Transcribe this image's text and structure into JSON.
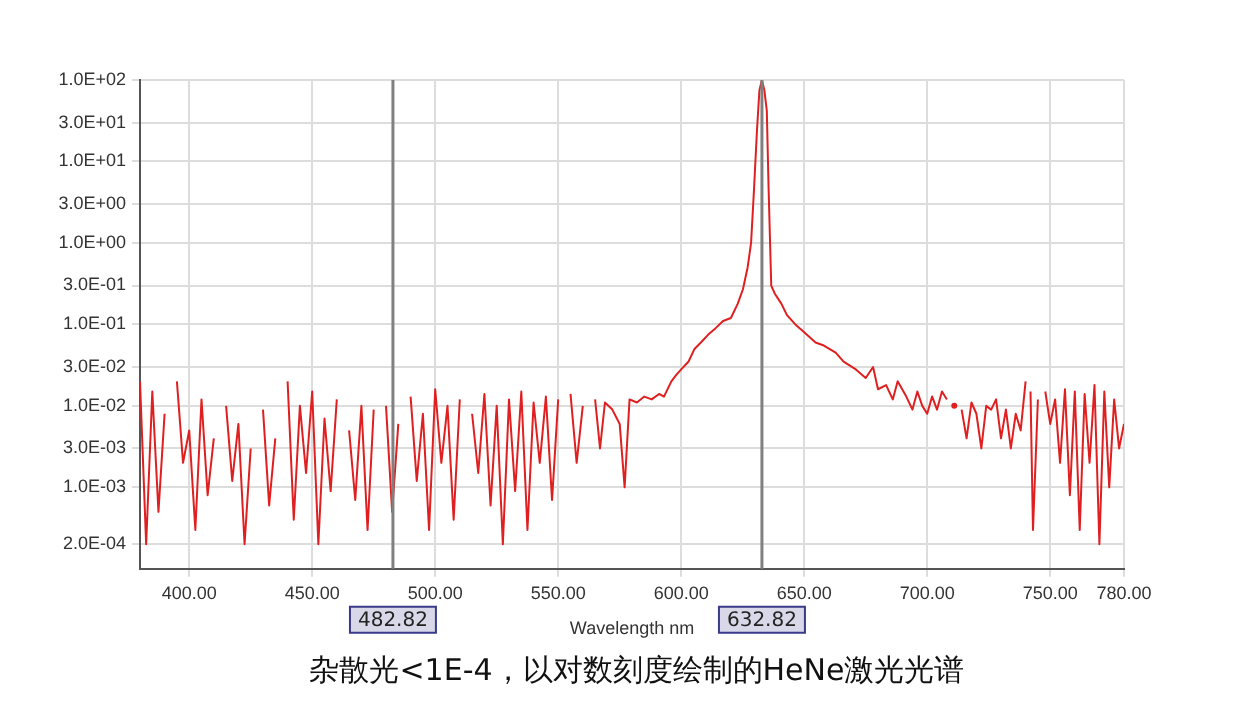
{
  "chart_data": {
    "type": "line",
    "title": "杂散光<1E-4，以对数刻度绘制的HeNe激光光谱",
    "xlabel": "Wavelength nm",
    "log": "y",
    "grid": true,
    "legend": false,
    "xlim": [
      380,
      780
    ],
    "xticks": [
      {
        "value": 400,
        "label": "400.00"
      },
      {
        "value": 450,
        "label": "450.00"
      },
      {
        "value": 500,
        "label": "500.00"
      },
      {
        "value": 550,
        "label": "550.00"
      },
      {
        "value": 600,
        "label": "600.00"
      },
      {
        "value": 650,
        "label": "650.00"
      },
      {
        "value": 700,
        "label": "700.00"
      },
      {
        "value": 750,
        "label": "750.00"
      },
      {
        "value": 780,
        "label": "780.00"
      }
    ],
    "ylim": [
      0.0001,
      100
    ],
    "yticks": [
      {
        "value": 100,
        "label": "1.0E+02"
      },
      {
        "value": 30,
        "label": "3.0E+01"
      },
      {
        "value": 10,
        "label": "1.0E+01"
      },
      {
        "value": 3,
        "label": "3.0E+00"
      },
      {
        "value": 1,
        "label": "1.0E+00"
      },
      {
        "value": 0.3,
        "label": "3.0E-01"
      },
      {
        "value": 0.1,
        "label": "1.0E-01"
      },
      {
        "value": 0.03,
        "label": "3.0E-02"
      },
      {
        "value": 0.01,
        "label": "1.0E-02"
      },
      {
        "value": 0.003,
        "label": "3.0E-03"
      },
      {
        "value": 0.001,
        "label": "1.0E-03"
      },
      {
        "value": 0.0002,
        "label": "2.0E-04"
      }
    ],
    "ref_lines": [
      {
        "axis": "x",
        "value": 482.82,
        "label": "482.82",
        "color": "#808080"
      },
      {
        "axis": "x",
        "value": 632.82,
        "label": "632.82",
        "color": "#808080"
      }
    ],
    "series": [
      {
        "color": "#e02020",
        "x": [
          380,
          382.5,
          385,
          387.5,
          390,
          392.5,
          395,
          397.5,
          400,
          402.5,
          405,
          407.5,
          410,
          412.5,
          415,
          417.5,
          420,
          422.5,
          425,
          427.5,
          430,
          432.5,
          435,
          437.5,
          440,
          442.5,
          445,
          447.5,
          450,
          452.5,
          455,
          457.5,
          460,
          462.5,
          465,
          467.5,
          470,
          472.5,
          475,
          477.5,
          480,
          482.5,
          485,
          487.5,
          490,
          492.5,
          495,
          497.5,
          500,
          502.5,
          505,
          507.5,
          510,
          512.5,
          515,
          517.5,
          520,
          522.5,
          525,
          527.5,
          530,
          532.5,
          535,
          537.5,
          540,
          542.5,
          545,
          547.5,
          550,
          552.5,
          555,
          557.5,
          560,
          562.5,
          565,
          567,
          569,
          572,
          575,
          577,
          579,
          582,
          585,
          588,
          591,
          593,
          596,
          598,
          600,
          603,
          605.4,
          608,
          611,
          614,
          617,
          620.2,
          623,
          625.1,
          627,
          628.4,
          629.5,
          630.8,
          631.8,
          632.8,
          633.8,
          634.8,
          635.5,
          636.6,
          638,
          640.7,
          643,
          646.4,
          650,
          654.6,
          658,
          662.8,
          666,
          671,
          675,
          678,
          680,
          683.3,
          686,
          688,
          691.5,
          694,
          696,
          698,
          700,
          702,
          704,
          706,
          708,
          710,
          711,
          713,
          714,
          716,
          718,
          720,
          722,
          724,
          726,
          728,
          730,
          732,
          734,
          736,
          738,
          740,
          741,
          742,
          743,
          745,
          746,
          748,
          750,
          752,
          754,
          756,
          758,
          760,
          762,
          764,
          766,
          768,
          770,
          772,
          774,
          776,
          778,
          780
        ],
        "values": [
          0.02,
          0.0002,
          0.015,
          0.0005,
          0.008,
          null,
          0.02,
          0.002,
          0.005,
          0.0003,
          0.012,
          0.0008,
          0.004,
          null,
          0.01,
          0.0012,
          0.006,
          0.0002,
          0.003,
          null,
          0.009,
          0.0006,
          0.004,
          null,
          0.02,
          0.0004,
          0.01,
          0.0015,
          0.015,
          0.0002,
          0.007,
          0.0009,
          0.012,
          null,
          0.005,
          0.0007,
          0.01,
          0.0003,
          0.009,
          null,
          0.01,
          0.0005,
          0.006,
          null,
          0.013,
          0.0012,
          0.008,
          0.0003,
          0.016,
          0.002,
          0.01,
          0.0004,
          0.012,
          null,
          0.008,
          0.0015,
          0.014,
          0.0006,
          0.01,
          0.0002,
          0.012,
          0.0009,
          0.015,
          0.0003,
          0.011,
          0.002,
          0.013,
          0.0007,
          0.012,
          null,
          0.014,
          0.002,
          0.01,
          null,
          0.012,
          0.003,
          0.011,
          0.009,
          0.006,
          0.001,
          0.012,
          0.011,
          0.013,
          0.012,
          0.014,
          0.013,
          0.02,
          0.024,
          0.028,
          0.035,
          0.05,
          0.06,
          0.075,
          0.09,
          0.11,
          0.12,
          0.18,
          0.27,
          0.5,
          1,
          4,
          24,
          75,
          100,
          75,
          42,
          5,
          0.3,
          0.24,
          0.18,
          0.13,
          0.1,
          0.08,
          0.06,
          0.055,
          0.045,
          0.035,
          0.028,
          0.022,
          0.03,
          0.016,
          0.018,
          0.012,
          0.02,
          0.013,
          0.009,
          0.015,
          0.01,
          0.008,
          0.013,
          0.009,
          0.015,
          0.012,
          null,
          0.01,
          null,
          0.009,
          0.004,
          0.011,
          0.008,
          0.003,
          0.01,
          0.009,
          0.012,
          0.004,
          0.009,
          0.003,
          0.008,
          0.005,
          0.02,
          null,
          0.015,
          0.0003,
          0.012,
          null,
          0.015,
          0.006,
          0.012,
          0.002,
          0.016,
          0.0008,
          0.015,
          0.0003,
          0.014,
          0.002,
          0.018,
          0.0002,
          0.015,
          0.001,
          0.012,
          0.003,
          0.006
        ]
      }
    ]
  }
}
